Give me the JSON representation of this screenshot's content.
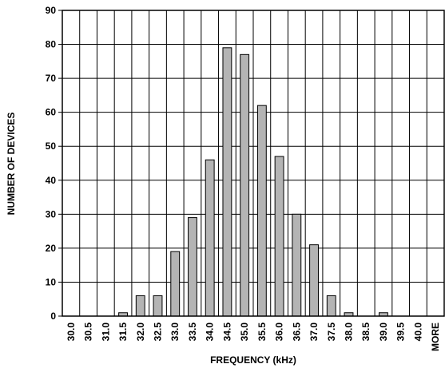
{
  "chart_data": {
    "type": "bar",
    "title": "",
    "xlabel": "FREQUENCY (kHz)",
    "ylabel": "NUMBER OF DEVICES",
    "ylim": [
      0,
      90
    ],
    "yticks": [
      "0",
      "10",
      "20",
      "30",
      "40",
      "50",
      "60",
      "70",
      "80",
      "90"
    ],
    "grid": true,
    "categories": [
      "30.0",
      "30.5",
      "31.0",
      "31.5",
      "32.0",
      "32.5",
      "33.0",
      "33.5",
      "34.0",
      "34.5",
      "35.0",
      "35.5",
      "36.0",
      "36.5",
      "37.0",
      "37.5",
      "38.0",
      "38.5",
      "39.0",
      "39.5",
      "40.0",
      "MORE"
    ],
    "values": [
      0,
      0,
      0,
      1,
      6,
      6,
      19,
      29,
      46,
      79,
      77,
      62,
      47,
      30,
      21,
      6,
      1,
      0,
      1,
      0,
      0,
      0
    ],
    "colors": {
      "bar_fill": "#b4b4b4",
      "bar_stroke": "#000000",
      "grid": "#000000"
    }
  }
}
